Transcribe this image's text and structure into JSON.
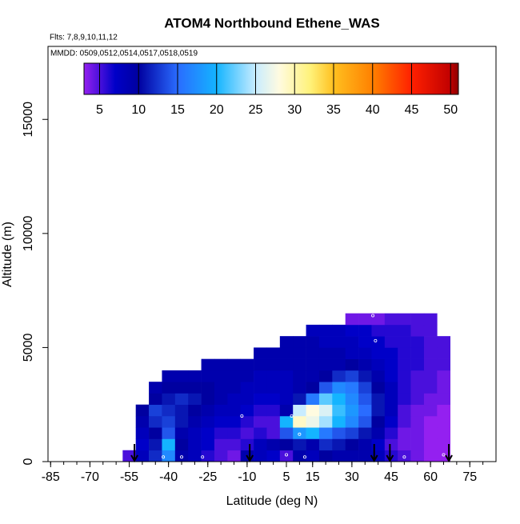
{
  "chart_data": {
    "type": "curtain",
    "title": "ATOM4 Northbound Ethene_WAS",
    "subtitle": "Flts: 7,8,9,10,11,12",
    "annotation": "MMDD: 0509,0512,0514,0517,0518,0519",
    "xlabel": "Latitude (deg N)",
    "ylabel": "Altitude (m)",
    "xlim": [
      -86,
      85
    ],
    "ylim": [
      0,
      18200
    ],
    "xticks": [
      -85,
      -70,
      -55,
      -40,
      -25,
      -10,
      5,
      15,
      30,
      45,
      60,
      75
    ],
    "xminorticks": [
      -85,
      -80,
      -75,
      -70,
      -65,
      -60,
      -55,
      -50,
      -45,
      -40,
      -35,
      -30,
      -25,
      -20,
      -15,
      -10,
      -5,
      0,
      5,
      10,
      15,
      20,
      25,
      30,
      35,
      40,
      45,
      50,
      55,
      60,
      65,
      70,
      75,
      80
    ],
    "yticks": [
      0,
      5000,
      10000,
      15000
    ],
    "xbins": [
      -57.5,
      -52.5,
      -47.5,
      -42.5,
      -37.5,
      -32.5,
      -27.5,
      -22.5,
      -17.5,
      -12.5,
      -7.5,
      -2.5,
      2.5,
      7.5,
      12.5,
      17.5,
      22.5,
      27.5,
      32.5,
      37.5,
      42.5,
      47.5,
      52.5,
      57.5,
      62.5,
      67.5
    ],
    "ybins": [
      0,
      500,
      1000,
      1500,
      2000,
      2500,
      3000,
      3500,
      4000,
      4500,
      5000,
      5500,
      6000,
      6500
    ],
    "z": [
      [
        5,
        8,
        12,
        17,
        9,
        8,
        6,
        5,
        4,
        9,
        8,
        7,
        5,
        9,
        8,
        10,
        9,
        9,
        9,
        8,
        6,
        5,
        4,
        3,
        3
      ],
      [
        null,
        7,
        11,
        20,
        10,
        8,
        7,
        5,
        5,
        6,
        8,
        9,
        10,
        11,
        9,
        12,
        11,
        10,
        9,
        7,
        5,
        4,
        4,
        3,
        3
      ],
      [
        null,
        8,
        10,
        14,
        9,
        8,
        7,
        6,
        6,
        5,
        6,
        5,
        14,
        18,
        20,
        16,
        14,
        13,
        11,
        9,
        6,
        4,
        4,
        3,
        3
      ],
      [
        null,
        9,
        12,
        13,
        11,
        9,
        8,
        7,
        7,
        6,
        5,
        5,
        20,
        29,
        27,
        24,
        20,
        17,
        14,
        10,
        7,
        5,
        4,
        3,
        3
      ],
      [
        null,
        10,
        13,
        12,
        11,
        10,
        9,
        8,
        8,
        7,
        6,
        6,
        9,
        25,
        28,
        26,
        21,
        18,
        15,
        11,
        8,
        5,
        4,
        4,
        3
      ],
      [
        null,
        null,
        10,
        11,
        12,
        11,
        10,
        9,
        8,
        8,
        7,
        7,
        8,
        11,
        16,
        22,
        20,
        17,
        14,
        11,
        8,
        6,
        5,
        4,
        4
      ],
      [
        null,
        null,
        9,
        10,
        10,
        10,
        10,
        9,
        9,
        8,
        8,
        8,
        8,
        9,
        10,
        14,
        17,
        16,
        13,
        10,
        8,
        6,
        5,
        5,
        4
      ],
      [
        null,
        null,
        null,
        9,
        9,
        9,
        9,
        9,
        9,
        9,
        8,
        8,
        8,
        9,
        9,
        10,
        12,
        13,
        11,
        9,
        7,
        6,
        5,
        5,
        4
      ],
      [
        null,
        null,
        null,
        null,
        null,
        null,
        9,
        9,
        9,
        9,
        9,
        9,
        9,
        9,
        9,
        9,
        9,
        10,
        9,
        8,
        7,
        6,
        6,
        5,
        5
      ],
      [
        null,
        null,
        null,
        null,
        null,
        null,
        null,
        null,
        null,
        null,
        9,
        9,
        9,
        9,
        9,
        9,
        9,
        8,
        8,
        7,
        7,
        6,
        6,
        5,
        5
      ],
      [
        null,
        null,
        null,
        null,
        null,
        null,
        null,
        null,
        null,
        null,
        null,
        null,
        9,
        9,
        9,
        8,
        8,
        8,
        7,
        7,
        6,
        6,
        6,
        5,
        5
      ],
      [
        null,
        null,
        null,
        null,
        null,
        null,
        null,
        null,
        null,
        null,
        null,
        null,
        null,
        null,
        8,
        8,
        8,
        7,
        7,
        6,
        6,
        6,
        5,
        5,
        null
      ],
      [
        null,
        null,
        null,
        null,
        null,
        null,
        null,
        null,
        null,
        null,
        null,
        null,
        null,
        null,
        null,
        null,
        null,
        4,
        4,
        4,
        5,
        5,
        5,
        5,
        null
      ]
    ],
    "clim": [
      3,
      51
    ],
    "cticks": [
      5,
      10,
      15,
      20,
      25,
      30,
      35,
      40,
      45,
      50
    ],
    "colorscale": [
      [
        3,
        "#9420f0"
      ],
      [
        7,
        "#0000c8"
      ],
      [
        10,
        "#0000a0"
      ],
      [
        15,
        "#2a6cff"
      ],
      [
        20,
        "#14b4ff"
      ],
      [
        25,
        "#c8ecff"
      ],
      [
        28,
        "#fffbe0"
      ],
      [
        32,
        "#fff27a"
      ],
      [
        35,
        "#ffc020"
      ],
      [
        40,
        "#ff8000"
      ],
      [
        45,
        "#ff2000"
      ],
      [
        50,
        "#c00000"
      ],
      [
        51,
        "#8b0000"
      ]
    ],
    "samples": {
      "x": [
        -42,
        -35,
        -27,
        -12,
        5,
        7,
        10,
        12,
        38,
        39,
        50,
        65
      ],
      "y": [
        200,
        200,
        200,
        2000,
        300,
        2000,
        1200,
        200,
        6400,
        5300,
        200,
        300
      ]
    },
    "arrows": [
      -53,
      -9,
      38.5,
      44.5,
      67
    ]
  }
}
